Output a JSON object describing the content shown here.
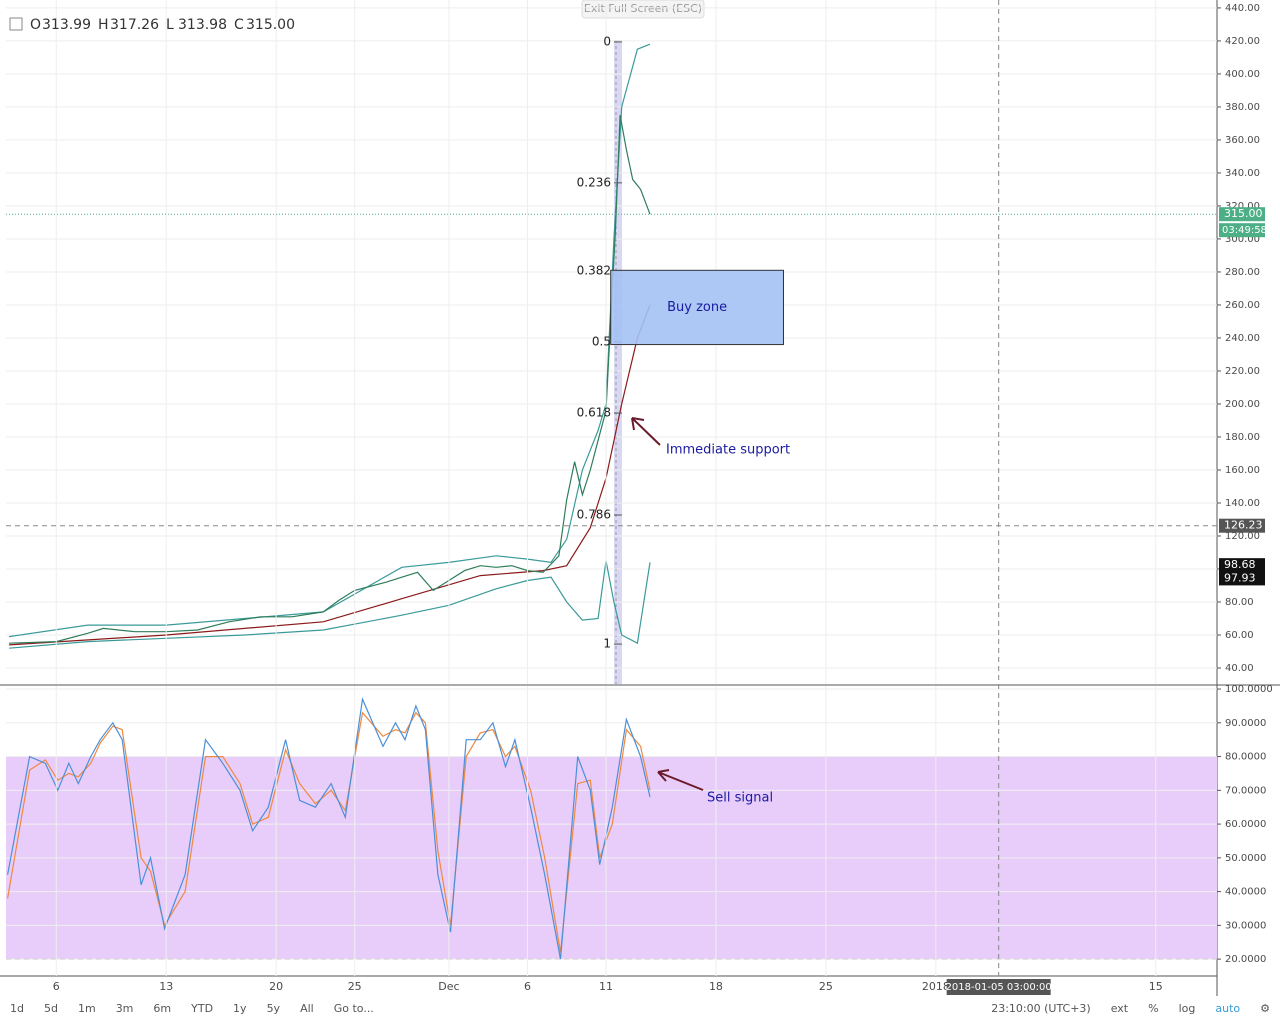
{
  "header": {
    "ohlc": [
      {
        "key": "O",
        "value": "313.99"
      },
      {
        "key": "H",
        "value": "317.26"
      },
      {
        "key": "L",
        "value": "313.98"
      },
      {
        "key": "C",
        "value": "315.00"
      }
    ]
  },
  "exit_full_screen": "Exit Full Screen (ESC)",
  "chart_data": [
    {
      "type": "line",
      "xlim": [
        2.8,
        79.9
      ],
      "ylim": [
        30.3,
        444.8
      ],
      "grid": true,
      "yticks": [
        {
          "value": 40,
          "label": "40.00"
        },
        {
          "value": 60,
          "label": "60.00"
        },
        {
          "value": 80,
          "label": "80.00"
        },
        {
          "value": 100,
          "label": "100.00"
        },
        {
          "value": 120,
          "label": "120.00"
        },
        {
          "value": 140,
          "label": "140.00"
        },
        {
          "value": 160,
          "label": "160.00"
        },
        {
          "value": 180,
          "label": "180.00"
        },
        {
          "value": 200,
          "label": "200.00"
        },
        {
          "value": 220,
          "label": "220.00"
        },
        {
          "value": 240,
          "label": "240.00"
        },
        {
          "value": 260,
          "label": "260.00"
        },
        {
          "value": 280,
          "label": "280.00"
        },
        {
          "value": 300,
          "label": "300.00"
        },
        {
          "value": 320,
          "label": "320.00"
        },
        {
          "value": 340,
          "label": "340.00"
        },
        {
          "value": 360,
          "label": "360.00"
        },
        {
          "value": 380,
          "label": "380.00"
        },
        {
          "value": 400,
          "label": "400.00"
        },
        {
          "value": 420,
          "label": "420.00"
        },
        {
          "value": 440,
          "label": "440.00"
        }
      ],
      "series": [
        {
          "color": "#3a9a9a",
          "x": [
            3,
            8,
            13,
            18,
            23,
            28,
            31,
            34,
            36,
            37.5,
            38.5,
            39.5,
            40.5,
            41,
            41.5,
            42,
            43,
            43.8
          ],
          "values": [
            59,
            66,
            66,
            70,
            74,
            101,
            104,
            108,
            106,
            104,
            118,
            160,
            184,
            200,
            300,
            380,
            415,
            418
          ]
        },
        {
          "color": "#3a9a9a",
          "x": [
            3,
            8,
            13,
            18,
            23,
            28,
            31,
            34,
            36,
            37.5,
            38.5,
            39.5,
            40.5,
            41,
            41.5,
            42,
            43,
            43.8
          ],
          "values": [
            52,
            56,
            58,
            60,
            63,
            72,
            78,
            88,
            93,
            95,
            80,
            69,
            70,
            105,
            80,
            60,
            55,
            104
          ]
        },
        {
          "color": "#8b1a1a",
          "x": [
            3,
            13,
            23,
            28,
            33,
            37,
            38.5,
            40,
            41,
            42,
            43,
            43.8
          ],
          "values": [
            54,
            60,
            68,
            82,
            96,
            99,
            102,
            125,
            155,
            200,
            240,
            260
          ]
        },
        {
          "color": "#2e7d5b",
          "x": [
            3,
            6,
            8,
            9,
            11,
            13,
            15,
            17,
            19,
            21,
            23,
            24,
            25,
            27,
            28,
            29,
            30,
            31,
            32,
            33,
            34,
            35,
            36,
            37,
            38,
            38.5,
            39,
            39.5,
            40,
            40.5,
            41,
            41.3,
            41.6,
            41.9,
            42.3,
            42.7,
            43.2,
            43.8
          ],
          "values": [
            55,
            56,
            61,
            64,
            62,
            62,
            63,
            68,
            71,
            71,
            74,
            81,
            87,
            92,
            95,
            98,
            87,
            93,
            99,
            102,
            101,
            102,
            99,
            98,
            108,
            142,
            165,
            145,
            160,
            178,
            196,
            251,
            305,
            375,
            354,
            336,
            330,
            315
          ]
        }
      ],
      "fib_levels": [
        {
          "level": 0,
          "price": 419.4
        },
        {
          "level": 0.236,
          "price": 334
        },
        {
          "level": 0.382,
          "price": 280.6
        },
        {
          "level": 0.5,
          "price": 237.6
        },
        {
          "level": 0.618,
          "price": 194.5
        },
        {
          "level": 0.786,
          "price": 132.7
        },
        {
          "level": 1,
          "price": 54.5
        }
      ],
      "annotations": [
        {
          "text": "Buy zone",
          "x": [
            41.3,
            52.3
          ],
          "y": [
            236,
            281
          ],
          "color": "#a4c2f4"
        },
        {
          "text": "Immediate support"
        }
      ],
      "price_tags": [
        {
          "value": 315,
          "label": "315.00",
          "color": "#4caf86"
        },
        {
          "value": 98.68,
          "color": "#111111"
        },
        {
          "value": 97.93,
          "color": "#111111"
        }
      ],
      "countdown": "03:49:58",
      "crosshair": {
        "price": 126.23,
        "x": 66,
        "date_label": "2018-01-05 03:00:00"
      }
    },
    {
      "type": "line",
      "xlim": [
        2.8,
        79.9
      ],
      "ylim": [
        15,
        100.9
      ],
      "grid": true,
      "band": [
        20,
        80
      ],
      "band_color": "#e8cdfa",
      "yticks": [
        {
          "value": 20,
          "label": "20.0000"
        },
        {
          "value": 30,
          "label": "30.0000"
        },
        {
          "value": 40,
          "label": "40.0000"
        },
        {
          "value": 50,
          "label": "50.0000"
        },
        {
          "value": 60,
          "label": "60.0000"
        },
        {
          "value": 70,
          "label": "70.0000"
        },
        {
          "value": 80,
          "label": "80.0000"
        },
        {
          "value": 90,
          "label": "90.0000"
        },
        {
          "value": 100,
          "label": "100.0000"
        }
      ],
      "xticks": [
        {
          "value": 6,
          "label": "6"
        },
        {
          "value": 13,
          "label": "13"
        },
        {
          "value": 20,
          "label": "20"
        },
        {
          "value": 25,
          "label": "25"
        },
        {
          "value": 31,
          "label": "Dec"
        },
        {
          "value": 36,
          "label": "6"
        },
        {
          "value": 41,
          "label": "11"
        },
        {
          "value": 48,
          "label": "18"
        },
        {
          "value": 55,
          "label": "25"
        },
        {
          "value": 62,
          "label": "2018"
        },
        {
          "value": 76,
          "label": "15"
        }
      ],
      "series": [
        {
          "color": "#f0883e",
          "x": [
            2.9,
            4.3,
            5.3,
            6.1,
            6.8,
            7.4,
            8.2,
            8.8,
            9.6,
            10.2,
            11.4,
            12,
            12.9,
            14.2,
            15.5,
            16.6,
            17.7,
            18.5,
            19.5,
            20.6,
            21.5,
            22.5,
            23.5,
            24.4,
            25.5,
            26.8,
            27.6,
            28.2,
            28.9,
            29.5,
            30.3,
            31.1,
            32.1,
            33,
            33.8,
            34.6,
            35.2,
            36.2,
            37.1,
            38.1,
            39.2,
            40,
            40.6,
            41.4,
            42.3,
            43.2,
            43.8
          ],
          "values": [
            38,
            76,
            79,
            73,
            75,
            74,
            78,
            84,
            89,
            88,
            50,
            46,
            30,
            40,
            80,
            80,
            72,
            60,
            62,
            82,
            72,
            66,
            70,
            64,
            93,
            86,
            88,
            87,
            93,
            90,
            52,
            30,
            80,
            87,
            88,
            80,
            83,
            70,
            50,
            22,
            72,
            73,
            50,
            60,
            88,
            83,
            70
          ]
        },
        {
          "color": "#4a90d9",
          "x": [
            2.9,
            4.3,
            5.3,
            6.1,
            6.8,
            7.4,
            8.2,
            8.8,
            9.6,
            10.2,
            11.4,
            12,
            12.9,
            14.2,
            15.5,
            16.6,
            17.7,
            18.5,
            19.5,
            20.6,
            21.5,
            22.5,
            23.5,
            24.4,
            25.5,
            26.8,
            27.6,
            28.2,
            28.9,
            29.5,
            30.3,
            31.1,
            32.1,
            33,
            33.8,
            34.6,
            35.2,
            36.2,
            37.1,
            38.1,
            39.2,
            40,
            40.6,
            41.4,
            42.3,
            43.2,
            43.8
          ],
          "values": [
            45,
            80,
            78,
            70,
            78,
            72,
            80,
            85,
            90,
            85,
            42,
            50,
            29,
            45,
            85,
            78,
            70,
            58,
            65,
            85,
            67,
            65,
            72,
            62,
            97,
            83,
            90,
            85,
            95,
            88,
            45,
            28,
            85,
            85,
            90,
            77,
            85,
            65,
            45,
            20,
            80,
            70,
            48,
            65,
            91,
            80,
            68
          ]
        }
      ],
      "annotations": [
        {
          "text": "Sell signal"
        }
      ]
    }
  ],
  "toolbar": {
    "ranges": [
      "1d",
      "5d",
      "1m",
      "3m",
      "6m",
      "YTD",
      "1y",
      "5y",
      "All",
      "Go to..."
    ],
    "time": "23:10:00 (UTC+3)",
    "options": [
      "ext",
      "%",
      "log",
      "auto"
    ]
  }
}
